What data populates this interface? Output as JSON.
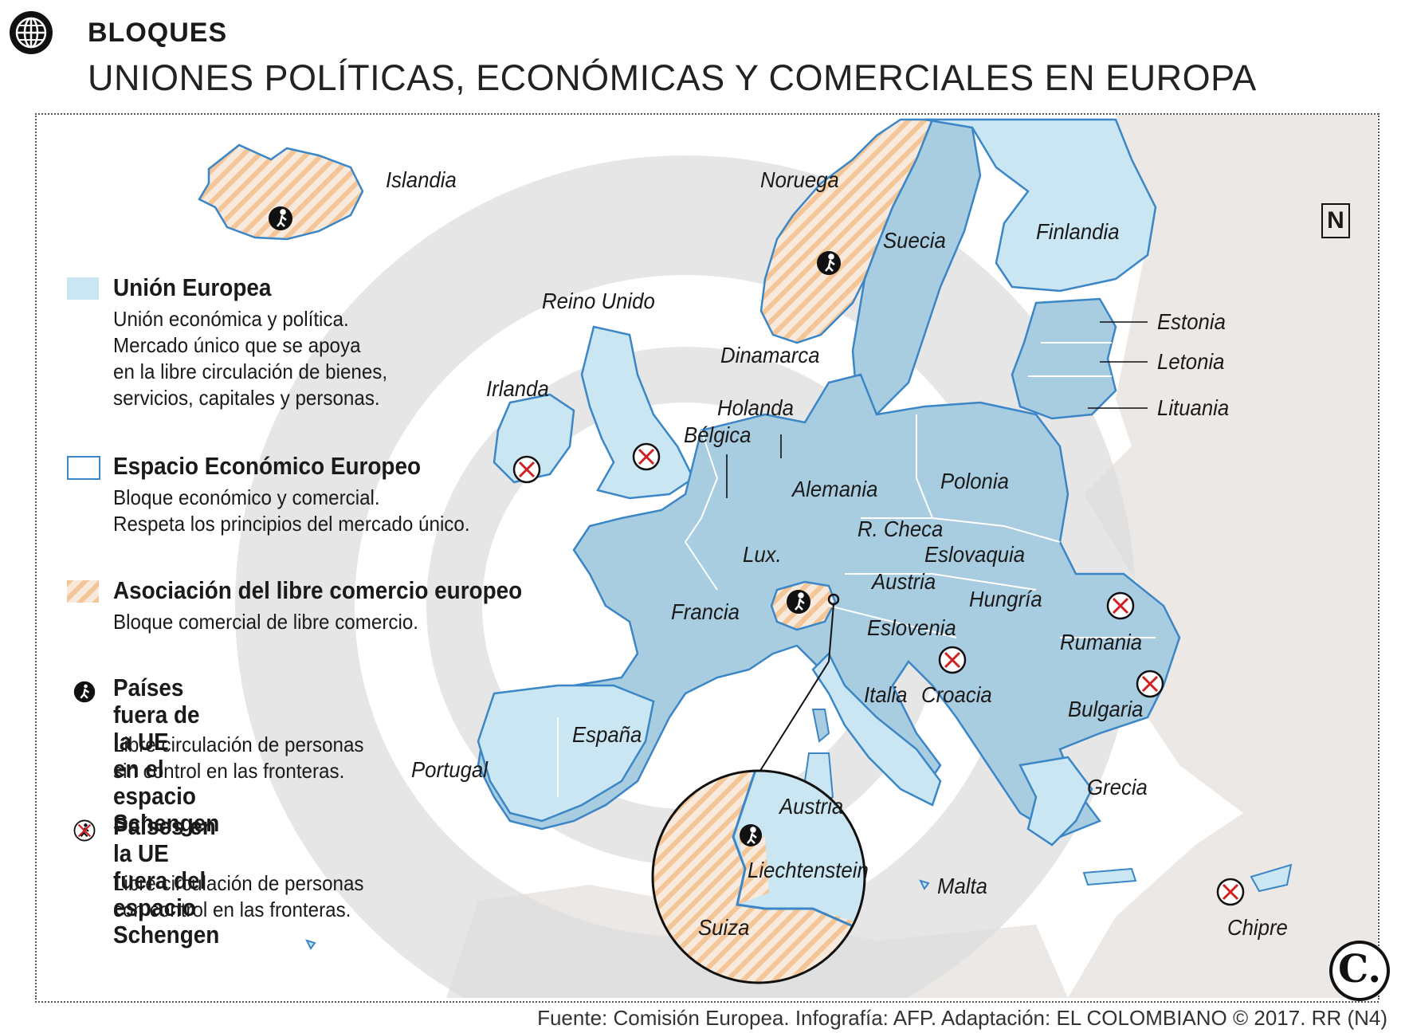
{
  "header": {
    "kicker": "BLOQUES",
    "title": "UNIONES POLÍTICAS, ECONÓMICAS Y COMERCIALES EN EUROPA"
  },
  "icons": {
    "globe": "globe-icon",
    "north": "north-arrow-icon",
    "walker": "pedestrian-icon",
    "walker_crossed": "pedestrian-crossed-icon",
    "logo": "el-colombiano-logo"
  },
  "colors": {
    "eu_fill": "#c9e6f2",
    "eu_fill_dark": "#a9cde0",
    "border": "#3a86c6",
    "efta_stripe": "#f5c79a",
    "land_other": "#ebe7e4",
    "watermark": "#dedede"
  },
  "north_label": "N",
  "legend": [
    {
      "id": "eu",
      "title": "Unión Europea",
      "desc": "Unión económica y política.\nMercado único que se apoya\nen la libre circulación de bienes,\nservicios, capitales y personas."
    },
    {
      "id": "eee",
      "title": "Espacio Económico Europeo",
      "desc": "Bloque económico y comercial.\nRespeta los principios del mercado único."
    },
    {
      "id": "aelc",
      "title": "Asociación del libre comercio europeo",
      "desc": "Bloque comercial de libre comercio."
    },
    {
      "id": "schengen_in",
      "title": "Países fuera de la UE\nen el espacio Schengen",
      "desc": "Libre circulación de personas\nsin control en las fronteras."
    },
    {
      "id": "schengen_out",
      "title": "Países en la UE\nfuera del espacio Schengen",
      "desc": "Libre circulación de personas\ncon control en las fronteras."
    }
  ],
  "countries": {
    "islandia": "Islandia",
    "noruega": "Noruega",
    "suecia": "Suecia",
    "finlandia": "Finlandia",
    "reino_unido": "Reino Unido",
    "irlanda": "Irlanda",
    "dinamarca": "Dinamarca",
    "estonia": "Estonia",
    "letonia": "Letonia",
    "lituania": "Lituania",
    "holanda": "Holanda",
    "belgica": "Bélgica",
    "alemania": "Alemania",
    "polonia": "Polonia",
    "r_checa": "R. Checa",
    "eslovaquia": "Eslovaquia",
    "lux": "Lux.",
    "austria": "Austria",
    "hungria": "Hungría",
    "francia": "Francia",
    "eslovenia": "Eslovenia",
    "rumania": "Rumania",
    "italia": "Italia",
    "croacia": "Croacia",
    "bulgaria": "Bulgaria",
    "espana": "España",
    "portugal": "Portugal",
    "grecia": "Grecia",
    "malta": "Malta",
    "chipre": "Chipre",
    "inset_austria": "Austria",
    "inset_liechtenstein": "Liechtenstein",
    "inset_suiza": "Suiza"
  },
  "footer": {
    "source": "Fuente: Comisión Europea. Infografía: AFP. Adaptación: EL COLOMBIANO © 2017. RR (N4)",
    "logo_letter": "C."
  }
}
